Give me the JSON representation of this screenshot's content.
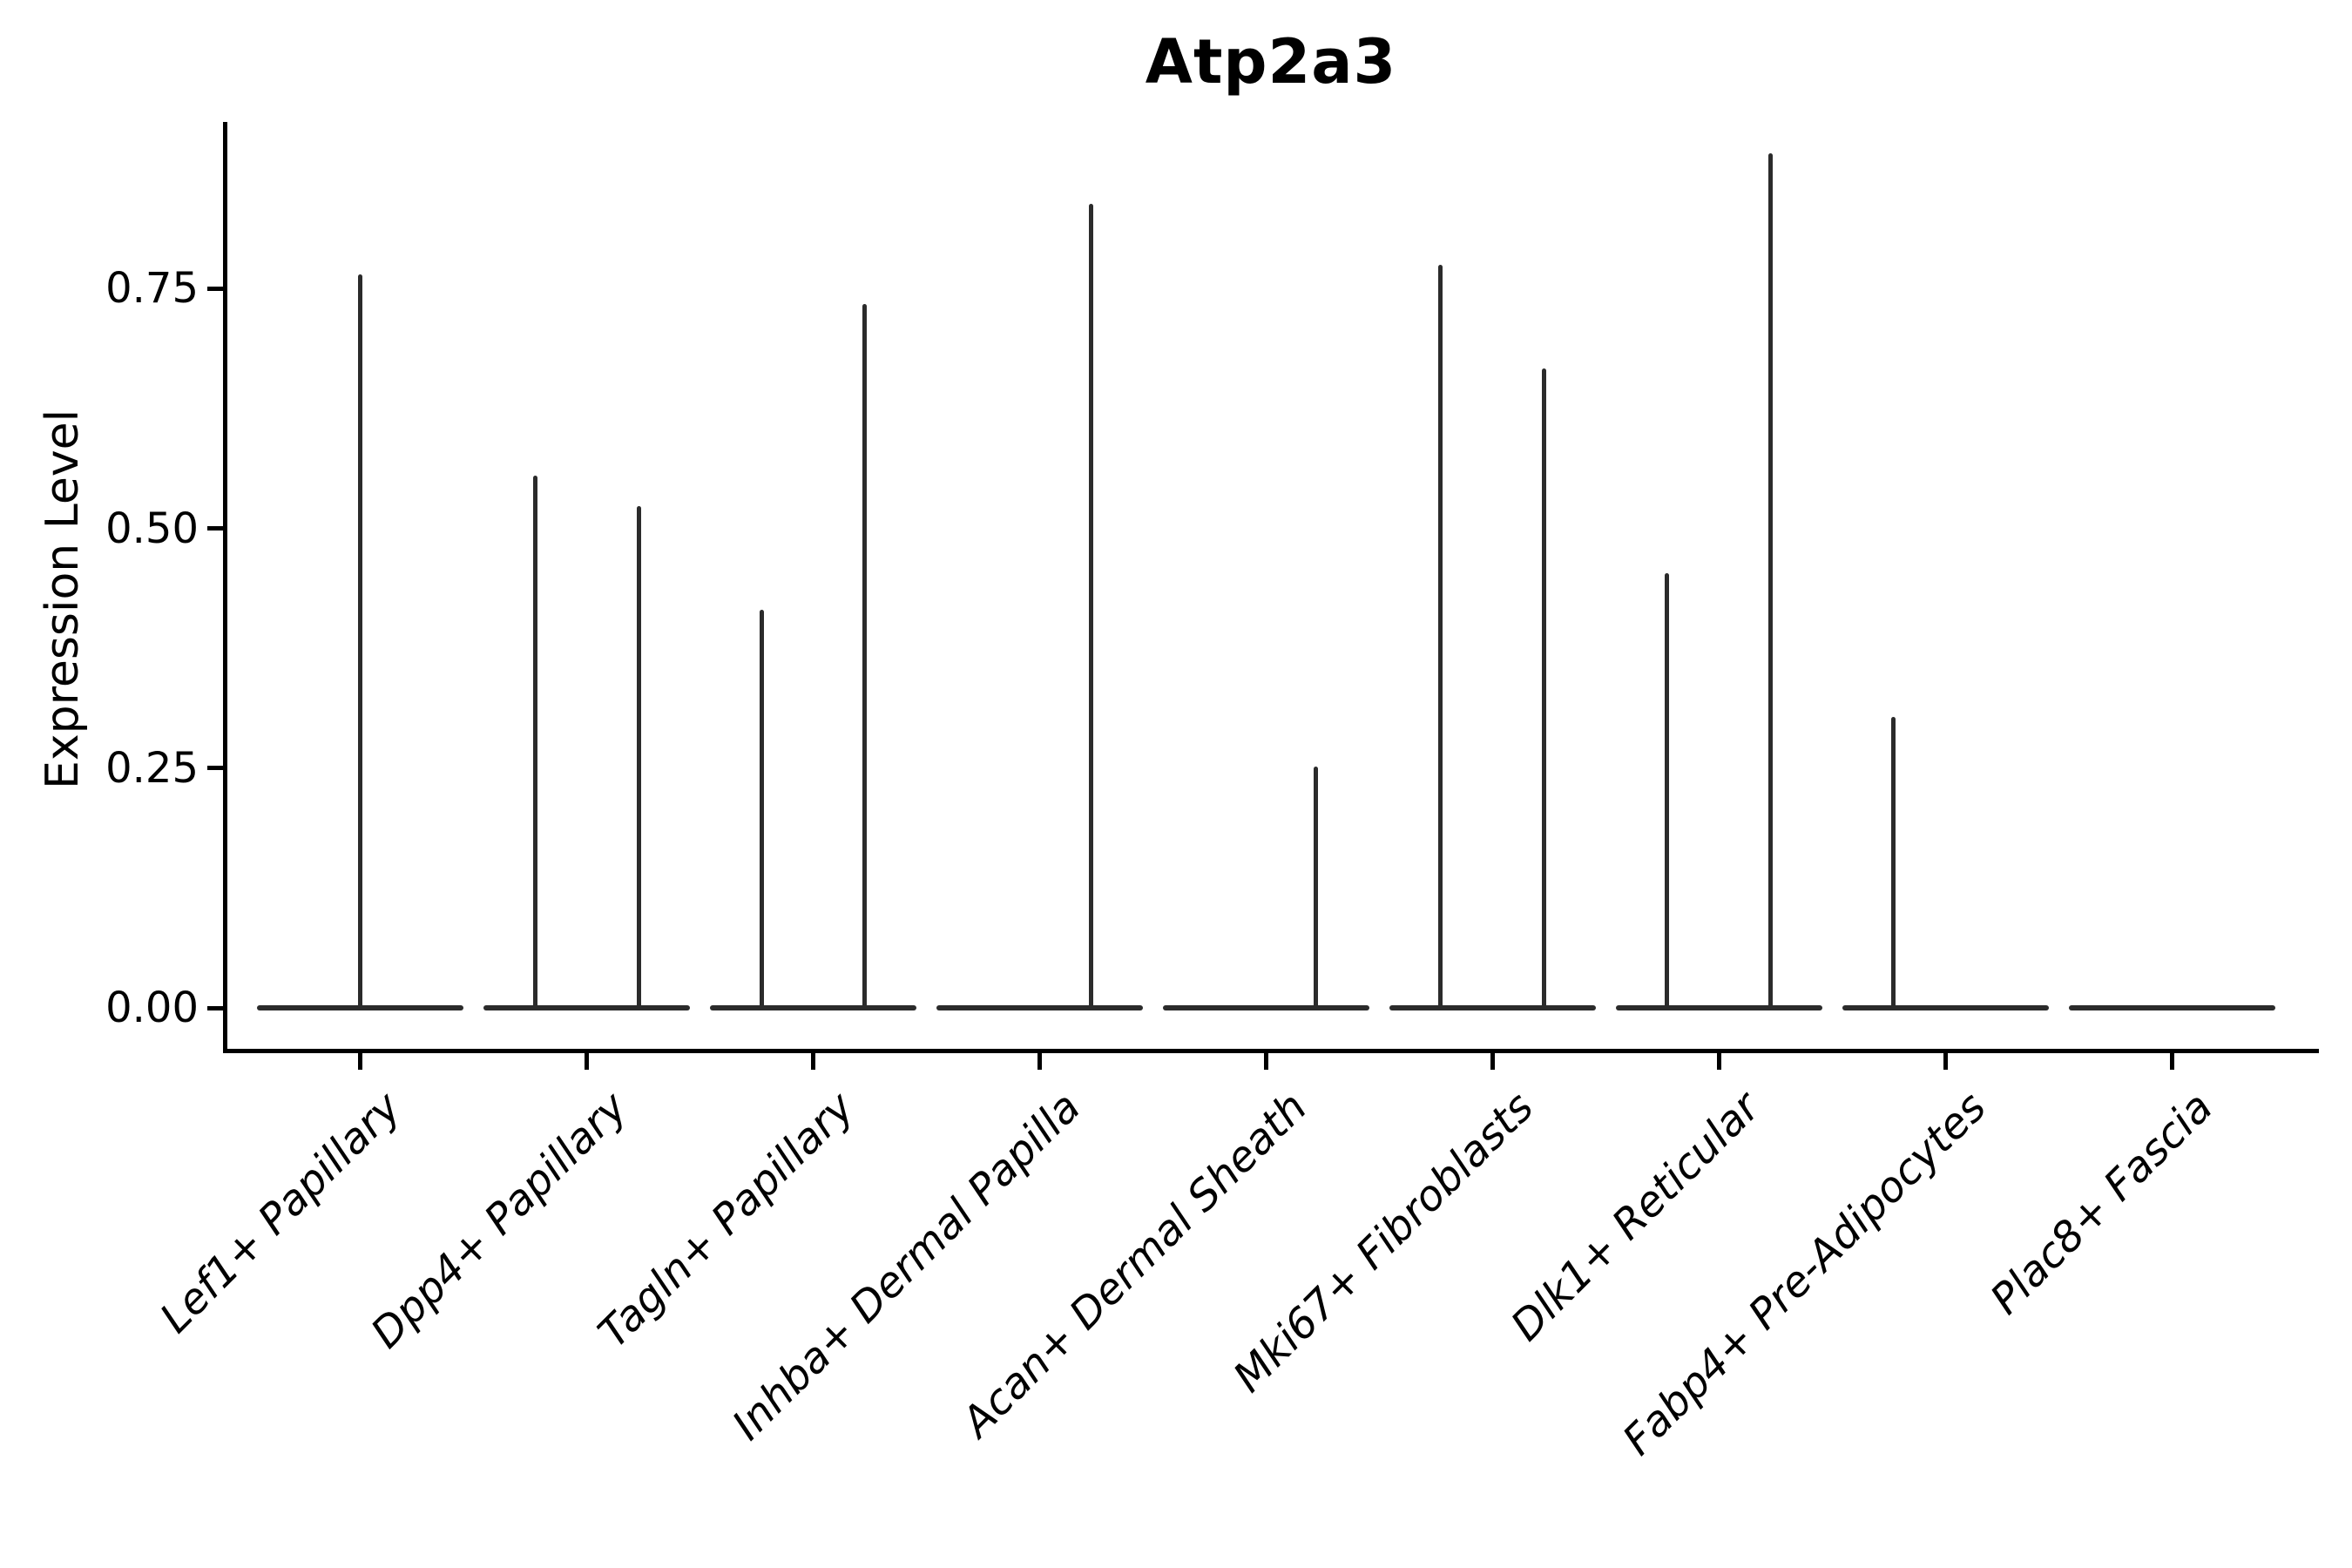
{
  "page": {
    "background": "#ffffff"
  },
  "chart_data": {
    "type": "violin",
    "title": "Atp2a3",
    "xlabel": "",
    "ylabel": "Expression Level",
    "ytick_values": [
      0.0,
      0.25,
      0.5,
      0.75
    ],
    "ytick_labels": [
      "0.00",
      "0.25",
      "0.50",
      "0.75"
    ],
    "ylim": [
      -0.045,
      0.923
    ],
    "grid": false,
    "legend": false,
    "categories": [
      "Lef1+ Papillary",
      "Dpp4+ Papillary",
      "Tagln+ Papillary",
      "Inhba+ Dermal Papilla",
      "Acan+ Dermal Sheath",
      "Mki67+ Fibroblasts",
      "Dlk1+ Reticular",
      "Fabp4+ Pre-Adipocytes",
      "Plac8+ Fascia"
    ],
    "violins": [
      {
        "category": "Lef1+ Papillary",
        "baseline_value": 0.0,
        "spikes": [
          {
            "offset": 0.0,
            "max_expression": 0.765
          }
        ]
      },
      {
        "category": "Dpp4+ Papillary",
        "baseline_value": 0.0,
        "spikes": [
          {
            "offset": -0.227,
            "max_expression": 0.555
          },
          {
            "offset": 0.229,
            "max_expression": 0.523
          }
        ]
      },
      {
        "category": "Tagln+ Papillary",
        "baseline_value": 0.0,
        "spikes": [
          {
            "offset": -0.227,
            "max_expression": 0.415
          },
          {
            "offset": 0.227,
            "max_expression": 0.734
          }
        ]
      },
      {
        "category": "Inhba+ Dermal Papilla",
        "baseline_value": 0.0,
        "spikes": [
          {
            "offset": 0.225,
            "max_expression": 0.838
          }
        ]
      },
      {
        "category": "Acan+ Dermal Sheath",
        "baseline_value": 0.0,
        "spikes": [
          {
            "offset": 0.221,
            "max_expression": 0.252
          }
        ]
      },
      {
        "category": "Mki67+ Fibroblasts",
        "baseline_value": 0.0,
        "spikes": [
          {
            "offset": -0.229,
            "max_expression": 0.775
          },
          {
            "offset": 0.227,
            "max_expression": 0.667
          }
        ]
      },
      {
        "category": "Dlk1+ Reticular",
        "baseline_value": 0.0,
        "spikes": [
          {
            "offset": -0.231,
            "max_expression": 0.453
          },
          {
            "offset": 0.227,
            "max_expression": 0.891
          }
        ]
      },
      {
        "category": "Fabp4+ Pre-Adipocytes",
        "baseline_value": 0.0,
        "spikes": [
          {
            "offset": -0.229,
            "max_expression": 0.303
          }
        ]
      },
      {
        "category": "Plac8+ Fascia",
        "baseline_value": 0.0,
        "spikes": []
      }
    ],
    "style": {
      "violin_color": "#2b2b2b",
      "axis_color": "#000000",
      "text_color": "#000000",
      "background": "#ffffff"
    }
  }
}
